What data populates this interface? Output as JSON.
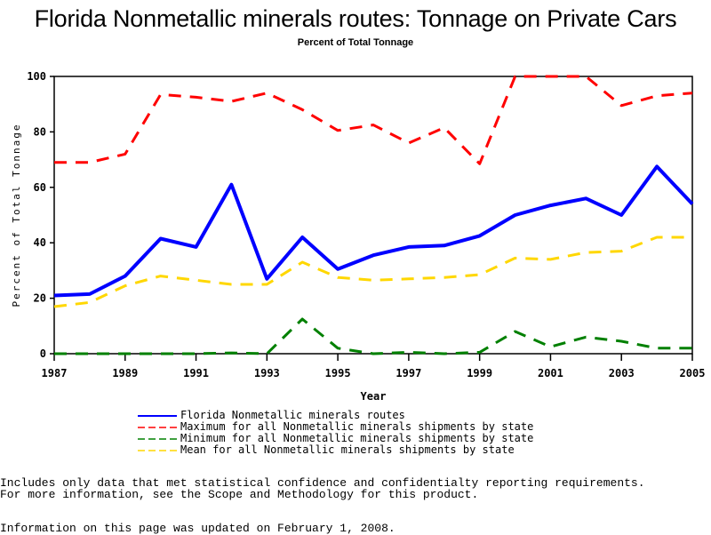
{
  "chart_data": {
    "type": "line",
    "title": "Florida Nonmetallic minerals routes: Tonnage on Private Cars",
    "subtitle": "Percent of Total Tonnage",
    "xlabel": "Year",
    "ylabel": "Percent of Total Tonnage",
    "xlim": [
      1987,
      2005
    ],
    "ylim": [
      0,
      100
    ],
    "x_ticks": [
      "1987",
      "1989",
      "1991",
      "1993",
      "1995",
      "1997",
      "1999",
      "2001",
      "2003",
      "2005"
    ],
    "y_ticks": [
      "0",
      "20",
      "40",
      "60",
      "80",
      "100"
    ],
    "x": [
      1987,
      1988,
      1989,
      1990,
      1991,
      1992,
      1993,
      1994,
      1995,
      1996,
      1997,
      1998,
      1999,
      2000,
      2001,
      2002,
      2003,
      2004,
      2005
    ],
    "legend_position": "bottom",
    "series": [
      {
        "name": "Florida Nonmetallic minerals routes",
        "color": "#0000ff",
        "style": "solid",
        "values": [
          21,
          21.5,
          28,
          41.5,
          38.5,
          61,
          27,
          42,
          30.5,
          35.5,
          38.5,
          39,
          42.5,
          50,
          53.5,
          56,
          50,
          67.5,
          54
        ]
      },
      {
        "name": "Maximum for all Nonmetallic minerals shipments by state",
        "color": "#ff0000",
        "style": "dashed",
        "values": [
          69,
          69,
          72,
          93.5,
          92.5,
          91,
          94,
          88,
          80.5,
          82.5,
          76,
          81.5,
          68.5,
          100,
          100,
          100,
          89.5,
          93,
          94
        ]
      },
      {
        "name": "Minimum for all Nonmetallic minerals shipments by state",
        "color": "#008000",
        "style": "dashed",
        "values": [
          0,
          0,
          0,
          0,
          0,
          0.3,
          0,
          12.5,
          2,
          0,
          0.5,
          0,
          0.5,
          8,
          2.5,
          6,
          4.5,
          2,
          2
        ]
      },
      {
        "name": "Mean for all Nonmetallic minerals shipments by state",
        "color": "#ffd700",
        "style": "dashed",
        "values": [
          17,
          18.5,
          24.5,
          28,
          26.5,
          25,
          25,
          33,
          27.5,
          26.5,
          27,
          27.5,
          28.5,
          34.5,
          34,
          36.5,
          37,
          42,
          42
        ]
      }
    ]
  },
  "footnotes": {
    "line1": "Includes only data that met statistical confidence and confidentialty reporting requirements.",
    "line2": "For more information, see the Scope and Methodology for this product.",
    "updated": "Information on this page was updated on February 1, 2008."
  }
}
